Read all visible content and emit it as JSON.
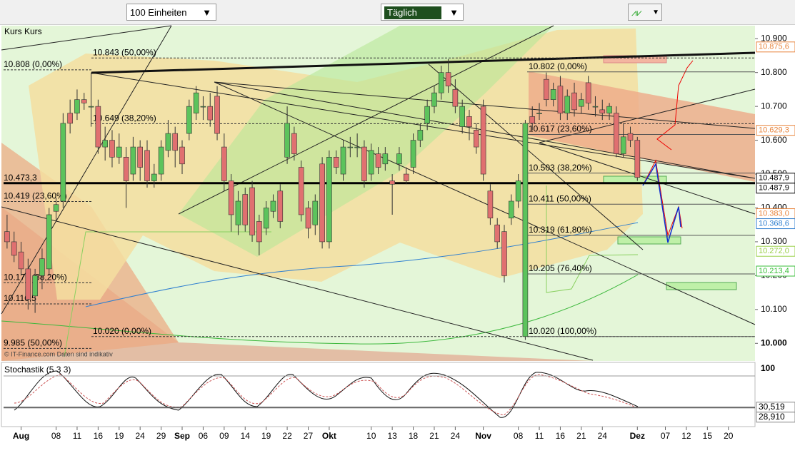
{
  "toolbar": {
    "units": "100 Einheiten",
    "interval": "Täglich"
  },
  "chart_data": {
    "type": "candlestick",
    "title": "Kurs Kurs",
    "watermark": "© IT-Finance.com  Daten sind indikativ",
    "up_color": "#5cc35c",
    "down_color": "#e07070",
    "xlim": [
      -0.5,
      106.8
    ],
    "ylim": [
      9.95,
      10.93
    ],
    "xticks": [
      {
        "value": 2,
        "label": "Aug"
      },
      {
        "value": 7,
        "label": "08"
      },
      {
        "value": 10,
        "label": "11"
      },
      {
        "value": 13,
        "label": "16"
      },
      {
        "value": 16,
        "label": "19"
      },
      {
        "value": 19,
        "label": "24"
      },
      {
        "value": 22,
        "label": "29"
      },
      {
        "value": 25,
        "label": "Sep"
      },
      {
        "value": 28,
        "label": "06"
      },
      {
        "value": 31,
        "label": "09"
      },
      {
        "value": 34,
        "label": "14"
      },
      {
        "value": 37,
        "label": "19"
      },
      {
        "value": 40,
        "label": "22"
      },
      {
        "value": 43,
        "label": "27"
      },
      {
        "value": 46,
        "label": "Okt"
      },
      {
        "value": 52,
        "label": "10"
      },
      {
        "value": 55,
        "label": "13"
      },
      {
        "value": 58,
        "label": "18"
      },
      {
        "value": 61,
        "label": "21"
      },
      {
        "value": 64,
        "label": "24"
      },
      {
        "value": 68,
        "label": "Nov"
      },
      {
        "value": 73,
        "label": "08"
      },
      {
        "value": 76,
        "label": "11"
      },
      {
        "value": 79,
        "label": "16"
      },
      {
        "value": 82,
        "label": "21"
      },
      {
        "value": 85,
        "label": "24"
      },
      {
        "value": 90,
        "label": "Dez"
      },
      {
        "value": 94,
        "label": "07"
      },
      {
        "value": 97,
        "label": "12"
      },
      {
        "value": 100,
        "label": "15"
      },
      {
        "value": 103,
        "label": "20"
      }
    ],
    "yticks": [
      {
        "value": 10.9,
        "label": "10.900"
      },
      {
        "value": 10.8,
        "label": "10.800"
      },
      {
        "value": 10.7,
        "label": "10.700"
      },
      {
        "value": 10.6,
        "label": "10.600"
      },
      {
        "value": 10.5,
        "label": "10.500"
      },
      {
        "value": 10.4,
        "label": "10.400"
      },
      {
        "value": 10.3,
        "label": "10.300"
      },
      {
        "value": 10.2,
        "label": "10.200"
      },
      {
        "value": 10.1,
        "label": "10.100"
      },
      {
        "value": 10.0,
        "label": "10.000"
      }
    ],
    "candles": [
      [
        10.33,
        10.38,
        10.28,
        10.3
      ],
      [
        10.3,
        10.33,
        10.24,
        10.26
      ],
      [
        10.27,
        10.3,
        10.2,
        10.22
      ],
      [
        10.22,
        10.25,
        10.1,
        10.13
      ],
      [
        10.14,
        10.22,
        10.09,
        10.2
      ],
      [
        10.2,
        10.28,
        10.16,
        10.25
      ],
      [
        10.22,
        10.4,
        10.2,
        10.38
      ],
      [
        10.39,
        10.43,
        10.36,
        10.41
      ],
      [
        10.42,
        10.68,
        10.4,
        10.65
      ],
      [
        10.68,
        10.72,
        10.62,
        10.65
      ],
      [
        10.68,
        10.75,
        10.66,
        10.72
      ],
      [
        10.72,
        10.74,
        10.69,
        10.71
      ],
      [
        10.7,
        10.8,
        10.64,
        10.7
      ],
      [
        10.7,
        10.72,
        10.56,
        10.58
      ],
      [
        10.58,
        10.64,
        10.54,
        10.6
      ],
      [
        10.6,
        10.63,
        10.52,
        10.55
      ],
      [
        10.55,
        10.62,
        10.53,
        10.58
      ],
      [
        10.55,
        10.58,
        10.4,
        10.48
      ],
      [
        10.5,
        10.61,
        10.48,
        10.58
      ],
      [
        10.58,
        10.6,
        10.48,
        10.52
      ],
      [
        10.57,
        10.6,
        10.46,
        10.48
      ],
      [
        10.48,
        10.53,
        10.46,
        10.5
      ],
      [
        10.5,
        10.6,
        10.48,
        10.58
      ],
      [
        10.57,
        10.66,
        10.55,
        10.62
      ],
      [
        10.62,
        10.64,
        10.52,
        10.57
      ],
      [
        10.58,
        10.6,
        10.5,
        10.53
      ],
      [
        10.62,
        10.72,
        10.6,
        10.7
      ],
      [
        10.68,
        10.76,
        10.66,
        10.74
      ],
      [
        10.7,
        10.73,
        10.66,
        10.7
      ],
      [
        10.7,
        10.74,
        10.64,
        10.66
      ],
      [
        10.73,
        10.76,
        10.6,
        10.62
      ],
      [
        10.58,
        10.62,
        10.45,
        10.48
      ],
      [
        10.48,
        10.5,
        10.33,
        10.38
      ],
      [
        10.35,
        10.45,
        10.32,
        10.42
      ],
      [
        10.44,
        10.46,
        10.33,
        10.35
      ],
      [
        10.46,
        10.48,
        10.3,
        10.32
      ],
      [
        10.36,
        10.38,
        10.26,
        10.3
      ],
      [
        10.34,
        10.42,
        10.32,
        10.4
      ],
      [
        10.39,
        10.44,
        10.37,
        10.42
      ],
      [
        10.45,
        10.47,
        10.34,
        10.36
      ],
      [
        10.55,
        10.7,
        10.53,
        10.65
      ],
      [
        10.62,
        10.64,
        10.54,
        10.56
      ],
      [
        10.52,
        10.54,
        10.36,
        10.38
      ],
      [
        10.4,
        10.42,
        10.31,
        10.34
      ],
      [
        10.35,
        10.44,
        10.32,
        10.42
      ],
      [
        10.53,
        10.55,
        10.28,
        10.3
      ],
      [
        10.3,
        10.57,
        10.28,
        10.55
      ],
      [
        10.55,
        10.57,
        10.5,
        10.52
      ],
      [
        10.5,
        10.6,
        10.48,
        10.58
      ],
      [
        10.58,
        10.61,
        10.55,
        10.58
      ],
      [
        10.58,
        10.62,
        10.55,
        10.58
      ],
      [
        10.58,
        10.6,
        10.46,
        10.48
      ],
      [
        10.5,
        10.59,
        10.48,
        10.57
      ],
      [
        10.56,
        10.58,
        10.5,
        10.52
      ],
      [
        10.53,
        10.58,
        10.51,
        10.56
      ],
      [
        10.48,
        10.5,
        10.38,
        10.47
      ],
      [
        10.53,
        10.58,
        10.51,
        10.56
      ],
      [
        10.5,
        10.52,
        10.47,
        10.48
      ],
      [
        10.52,
        10.62,
        10.5,
        10.6
      ],
      [
        10.6,
        10.65,
        10.58,
        10.63
      ],
      [
        10.65,
        10.72,
        10.63,
        10.7
      ],
      [
        10.7,
        10.76,
        10.68,
        10.74
      ],
      [
        10.74,
        10.82,
        10.72,
        10.8
      ],
      [
        10.8,
        10.84,
        10.74,
        10.76
      ],
      [
        10.75,
        10.78,
        10.68,
        10.7
      ],
      [
        10.64,
        10.72,
        10.62,
        10.7
      ],
      [
        10.67,
        10.69,
        10.6,
        10.64
      ],
      [
        10.63,
        10.65,
        10.56,
        10.58
      ],
      [
        10.7,
        10.72,
        10.48,
        10.5
      ],
      [
        10.45,
        10.47,
        10.35,
        10.37
      ],
      [
        10.35,
        10.37,
        10.28,
        10.3
      ],
      [
        10.33,
        10.35,
        10.18,
        10.2
      ],
      [
        10.37,
        10.44,
        10.35,
        10.42
      ],
      [
        10.42,
        10.5,
        10.4,
        10.48
      ],
      [
        10.02,
        10.66,
        10.01,
        10.65
      ],
      [
        10.67,
        10.7,
        10.63,
        10.65
      ],
      [
        10.68,
        10.71,
        10.66,
        10.68
      ],
      [
        10.78,
        10.8,
        10.7,
        10.72
      ],
      [
        10.72,
        10.77,
        10.7,
        10.75
      ],
      [
        10.76,
        10.79,
        10.66,
        10.68
      ],
      [
        10.68,
        10.75,
        10.66,
        10.73
      ],
      [
        10.74,
        10.77,
        10.67,
        10.69
      ],
      [
        10.7,
        10.74,
        10.68,
        10.72
      ],
      [
        10.77,
        10.79,
        10.69,
        10.71
      ],
      [
        10.7,
        10.73,
        10.67,
        10.7
      ],
      [
        10.69,
        10.72,
        10.66,
        10.68
      ],
      [
        10.68,
        10.71,
        10.66,
        10.7
      ],
      [
        10.68,
        10.7,
        10.55,
        10.56
      ],
      [
        10.56,
        10.65,
        10.55,
        10.61
      ],
      [
        10.62,
        10.64,
        10.58,
        10.6
      ],
      [
        10.6,
        10.61,
        10.48,
        10.49
      ]
    ],
    "left_levels": [
      {
        "value": 10.808,
        "label": "10.808 (0,00%)"
      },
      {
        "value": 10.4733,
        "label": "10.473,3"
      },
      {
        "value": 10.419,
        "label": "10.419 (23,60%)"
      },
      {
        "value": 10.179,
        "label": "10.179 (38,20%)"
      },
      {
        "value": 10.1165,
        "label": "10.116,5"
      },
      {
        "value": 9.985,
        "label": "9.985 (50,00%)"
      }
    ],
    "mid_levels": [
      {
        "value": 10.843,
        "label": "10.843 (50,00%)"
      },
      {
        "value": 10.649,
        "label": "10.649 (38,20%)"
      },
      {
        "value": 10.02,
        "label": "10.020 (0,00%)"
      }
    ],
    "right_levels": [
      {
        "value": 10.802,
        "label": "10.802 (0,00%)"
      },
      {
        "value": 10.617,
        "label": "10.617 (23,60%)"
      },
      {
        "value": 10.503,
        "label": "10.503 (38,20%)"
      },
      {
        "value": 10.411,
        "label": "10.411 (50,00%)"
      },
      {
        "value": 10.319,
        "label": "10.319 (61,80%)"
      },
      {
        "value": 10.205,
        "label": "10.205 (76,40%)"
      },
      {
        "value": 10.02,
        "label": "10.020 (100,00%)"
      }
    ],
    "price_tags": [
      {
        "value": 10.8756,
        "label": "10.875,6",
        "color": "#e8843c"
      },
      {
        "value": 10.6293,
        "label": "10.629,3",
        "color": "#e8843c"
      },
      {
        "value": 10.4879,
        "label": "10.487,9",
        "color": "#000000"
      },
      {
        "value": 10.4879,
        "label": "10.487,9",
        "color": "#000000"
      },
      {
        "value": 10.383,
        "label": "10.383,0",
        "color": "#e8843c"
      },
      {
        "value": 10.3686,
        "label": "10.368,6",
        "color": "#2f7fd0"
      },
      {
        "value": 10.272,
        "label": "10.272,0",
        "color": "#9ad04a"
      },
      {
        "value": 10.2134,
        "label": "10.213,4",
        "color": "#3cc03c"
      }
    ],
    "stochastic": {
      "title": "Stochastik (5 3 3)",
      "ylim": [
        0,
        100
      ],
      "yticks": [
        100
      ],
      "tags": [
        {
          "value": 30.519,
          "label": "30,519"
        },
        {
          "value": 28.91,
          "label": "28,910"
        }
      ]
    }
  }
}
